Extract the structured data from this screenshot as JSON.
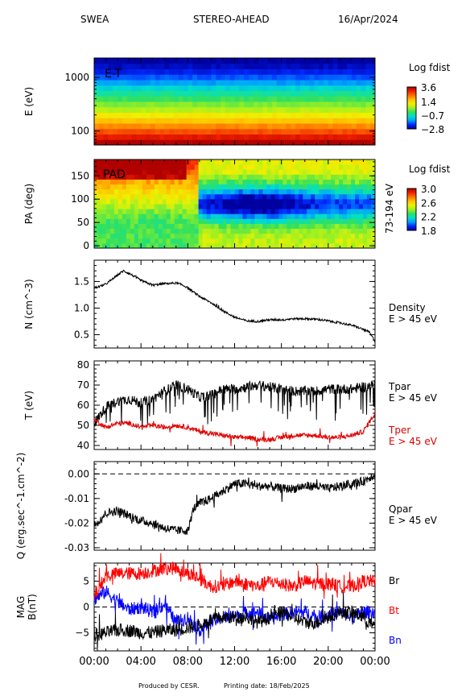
{
  "header": {
    "left": "SWEA",
    "center": "STEREO-AHEAD",
    "date": "16/Apr/2024"
  },
  "footer": {
    "producer": "Produced by CESR.",
    "printing": "Printing date: 18/Feb/2025"
  },
  "colors": {
    "black": "#000000",
    "tper": "#e00000",
    "br": "#000000",
    "bt": "#ff0000",
    "bn": "#0000ff",
    "colormap": [
      "#0000a0",
      "#0028ff",
      "#00a0ff",
      "#00e0c8",
      "#30e060",
      "#a0f020",
      "#f0f000",
      "#ffc000",
      "#ff7000",
      "#f02000",
      "#b00000"
    ]
  },
  "chart_data": [
    {
      "id": "energy-time",
      "type": "heatmap",
      "label": "E-T",
      "ylabel": "E (eV)",
      "yscale": "log",
      "yticks": [
        100,
        1000
      ],
      "ylim": [
        55,
        2300
      ],
      "colorbar": {
        "title": "Log fdist",
        "ticks": [
          3.6,
          1.4,
          -0.7,
          -2.8
        ],
        "range": [
          -2.8,
          3.6
        ]
      },
      "rows": [
        {
          "e": 60,
          "level": 3.6
        },
        {
          "e": 75,
          "level": 3.1
        },
        {
          "e": 95,
          "level": 2.6
        },
        {
          "e": 120,
          "level": 2.1
        },
        {
          "e": 150,
          "level": 1.6
        },
        {
          "e": 190,
          "level": 1.1
        },
        {
          "e": 240,
          "level": 0.6
        },
        {
          "e": 300,
          "level": 0.2
        },
        {
          "e": 380,
          "level": -0.2
        },
        {
          "e": 480,
          "level": -0.6
        },
        {
          "e": 600,
          "level": -1.0
        },
        {
          "e": 760,
          "level": -1.5
        },
        {
          "e": 960,
          "level": -1.9
        },
        {
          "e": 1200,
          "level": -2.3
        },
        {
          "e": 1500,
          "level": -2.6
        },
        {
          "e": 1900,
          "level": -2.8
        }
      ]
    },
    {
      "id": "pitch-angle",
      "type": "heatmap",
      "label": "PAD",
      "ylabel": "PA (deg)",
      "yticks": [
        0,
        50,
        100,
        150
      ],
      "ylim": [
        -5,
        185
      ],
      "right_label": "73-194 eV",
      "colorbar": {
        "title": "Log fdist",
        "ticks": [
          3.0,
          2.6,
          2.2,
          1.8
        ],
        "range": [
          1.8,
          3.0
        ]
      }
    },
    {
      "id": "density",
      "type": "line",
      "ylabel": "N (cm^-3)",
      "yticks": [
        0.5,
        1.0,
        1.5
      ],
      "ylim": [
        0.25,
        1.9
      ],
      "label": "Density",
      "sublabel": "E > 45 eV",
      "x": [
        0,
        1,
        2,
        2.5,
        3,
        4,
        5,
        6,
        7,
        7.5,
        8,
        9,
        10,
        11,
        12,
        13,
        14,
        15,
        16,
        17,
        18,
        19,
        20,
        21,
        22,
        23,
        23.5,
        24
      ],
      "series": [
        {
          "values": [
            1.37,
            1.45,
            1.62,
            1.7,
            1.65,
            1.52,
            1.43,
            1.46,
            1.47,
            1.44,
            1.38,
            1.22,
            1.1,
            0.95,
            0.83,
            0.76,
            0.75,
            0.78,
            0.78,
            0.8,
            0.8,
            0.79,
            0.76,
            0.72,
            0.68,
            0.6,
            0.55,
            0.38
          ]
        }
      ]
    },
    {
      "id": "temperature",
      "type": "line",
      "ylabel": "T (eV)",
      "yticks": [
        40,
        50,
        60,
        70,
        80
      ],
      "ylim": [
        38,
        82
      ],
      "x": [
        0,
        1,
        2,
        3,
        4,
        5,
        6,
        7,
        8,
        9,
        10,
        11,
        12,
        13,
        14,
        15,
        16,
        17,
        18,
        19,
        20,
        21,
        22,
        23,
        24
      ],
      "series": [
        {
          "name": "Tpar",
          "sublabel": "E > 45 eV",
          "values": [
            51,
            59,
            62,
            63,
            61,
            63,
            67,
            70,
            68,
            64,
            65,
            68,
            68,
            69,
            70,
            69,
            68,
            67,
            67,
            67,
            68,
            68,
            68,
            69,
            70
          ]
        },
        {
          "name": "Tper",
          "sublabel": "E > 45 eV",
          "values": [
            53,
            49,
            51,
            51,
            49,
            50,
            49,
            50,
            49,
            47,
            46,
            45,
            44,
            44,
            43,
            43,
            44,
            45,
            45,
            45,
            44,
            44,
            45,
            47,
            56
          ]
        }
      ]
    },
    {
      "id": "heat-flux",
      "type": "line",
      "ylabel": "Q (erg.sec^-1.cm^-2)",
      "yticks": [
        0.0,
        -0.01,
        -0.02,
        -0.03
      ],
      "ylim": [
        -0.031,
        0.005
      ],
      "label": "Qpar",
      "sublabel": "E > 45 eV",
      "x": [
        0,
        1,
        2,
        3,
        4,
        5,
        6,
        7,
        8,
        8.5,
        9,
        10,
        11,
        12,
        13,
        14,
        15,
        16,
        17,
        18,
        19,
        20,
        21,
        22,
        23,
        24
      ],
      "series": [
        {
          "values": [
            -0.021,
            -0.016,
            -0.015,
            -0.017,
            -0.019,
            -0.02,
            -0.022,
            -0.023,
            -0.023,
            -0.014,
            -0.012,
            -0.01,
            -0.007,
            -0.004,
            -0.004,
            -0.005,
            -0.005,
            -0.006,
            -0.006,
            -0.005,
            -0.005,
            -0.006,
            -0.005,
            -0.004,
            -0.003,
            0.0
          ]
        }
      ]
    },
    {
      "id": "magnetic-field",
      "type": "line",
      "ylabel": "MAG",
      "ylabel2": "B(nT)",
      "yticks": [
        5,
        0,
        -5
      ],
      "ylim": [
        -8.5,
        8.5
      ],
      "xlabel_ticks": [
        "00:00",
        "04:00",
        "08:00",
        "12:00",
        "16:00",
        "20:00",
        "00:00"
      ],
      "x": [
        0,
        1,
        2,
        3,
        4,
        5,
        6,
        7,
        8,
        9,
        10,
        11,
        12,
        13,
        14,
        15,
        16,
        17,
        18,
        19,
        20,
        21,
        22,
        23,
        24
      ],
      "series": [
        {
          "name": "Br",
          "values": [
            -5.5,
            -5,
            -4.5,
            -4.5,
            -5,
            -5,
            -4.5,
            -4.5,
            -4,
            -3.5,
            -2.5,
            -2,
            -2,
            -2,
            -3,
            -2,
            -1,
            -2,
            -3,
            -3,
            -2,
            -1,
            -1,
            -2,
            -4
          ]
        },
        {
          "name": "Bt",
          "values": [
            2,
            6,
            6.5,
            6.5,
            6.5,
            7,
            7.5,
            7.5,
            6.5,
            5.5,
            4,
            4,
            5,
            4.5,
            4,
            5,
            4.5,
            4,
            5,
            4.5,
            4.5,
            4,
            4,
            5,
            5
          ]
        },
        {
          "name": "Bn",
          "values": [
            1.5,
            3,
            1,
            -0.5,
            0,
            -1,
            0.5,
            -3,
            -2,
            -4.5,
            -3,
            -2,
            -2,
            -1,
            -1,
            -2.5,
            -1.5,
            -1,
            -1,
            -2,
            -1.5,
            -1,
            -2,
            -1,
            -1
          ]
        }
      ]
    }
  ]
}
